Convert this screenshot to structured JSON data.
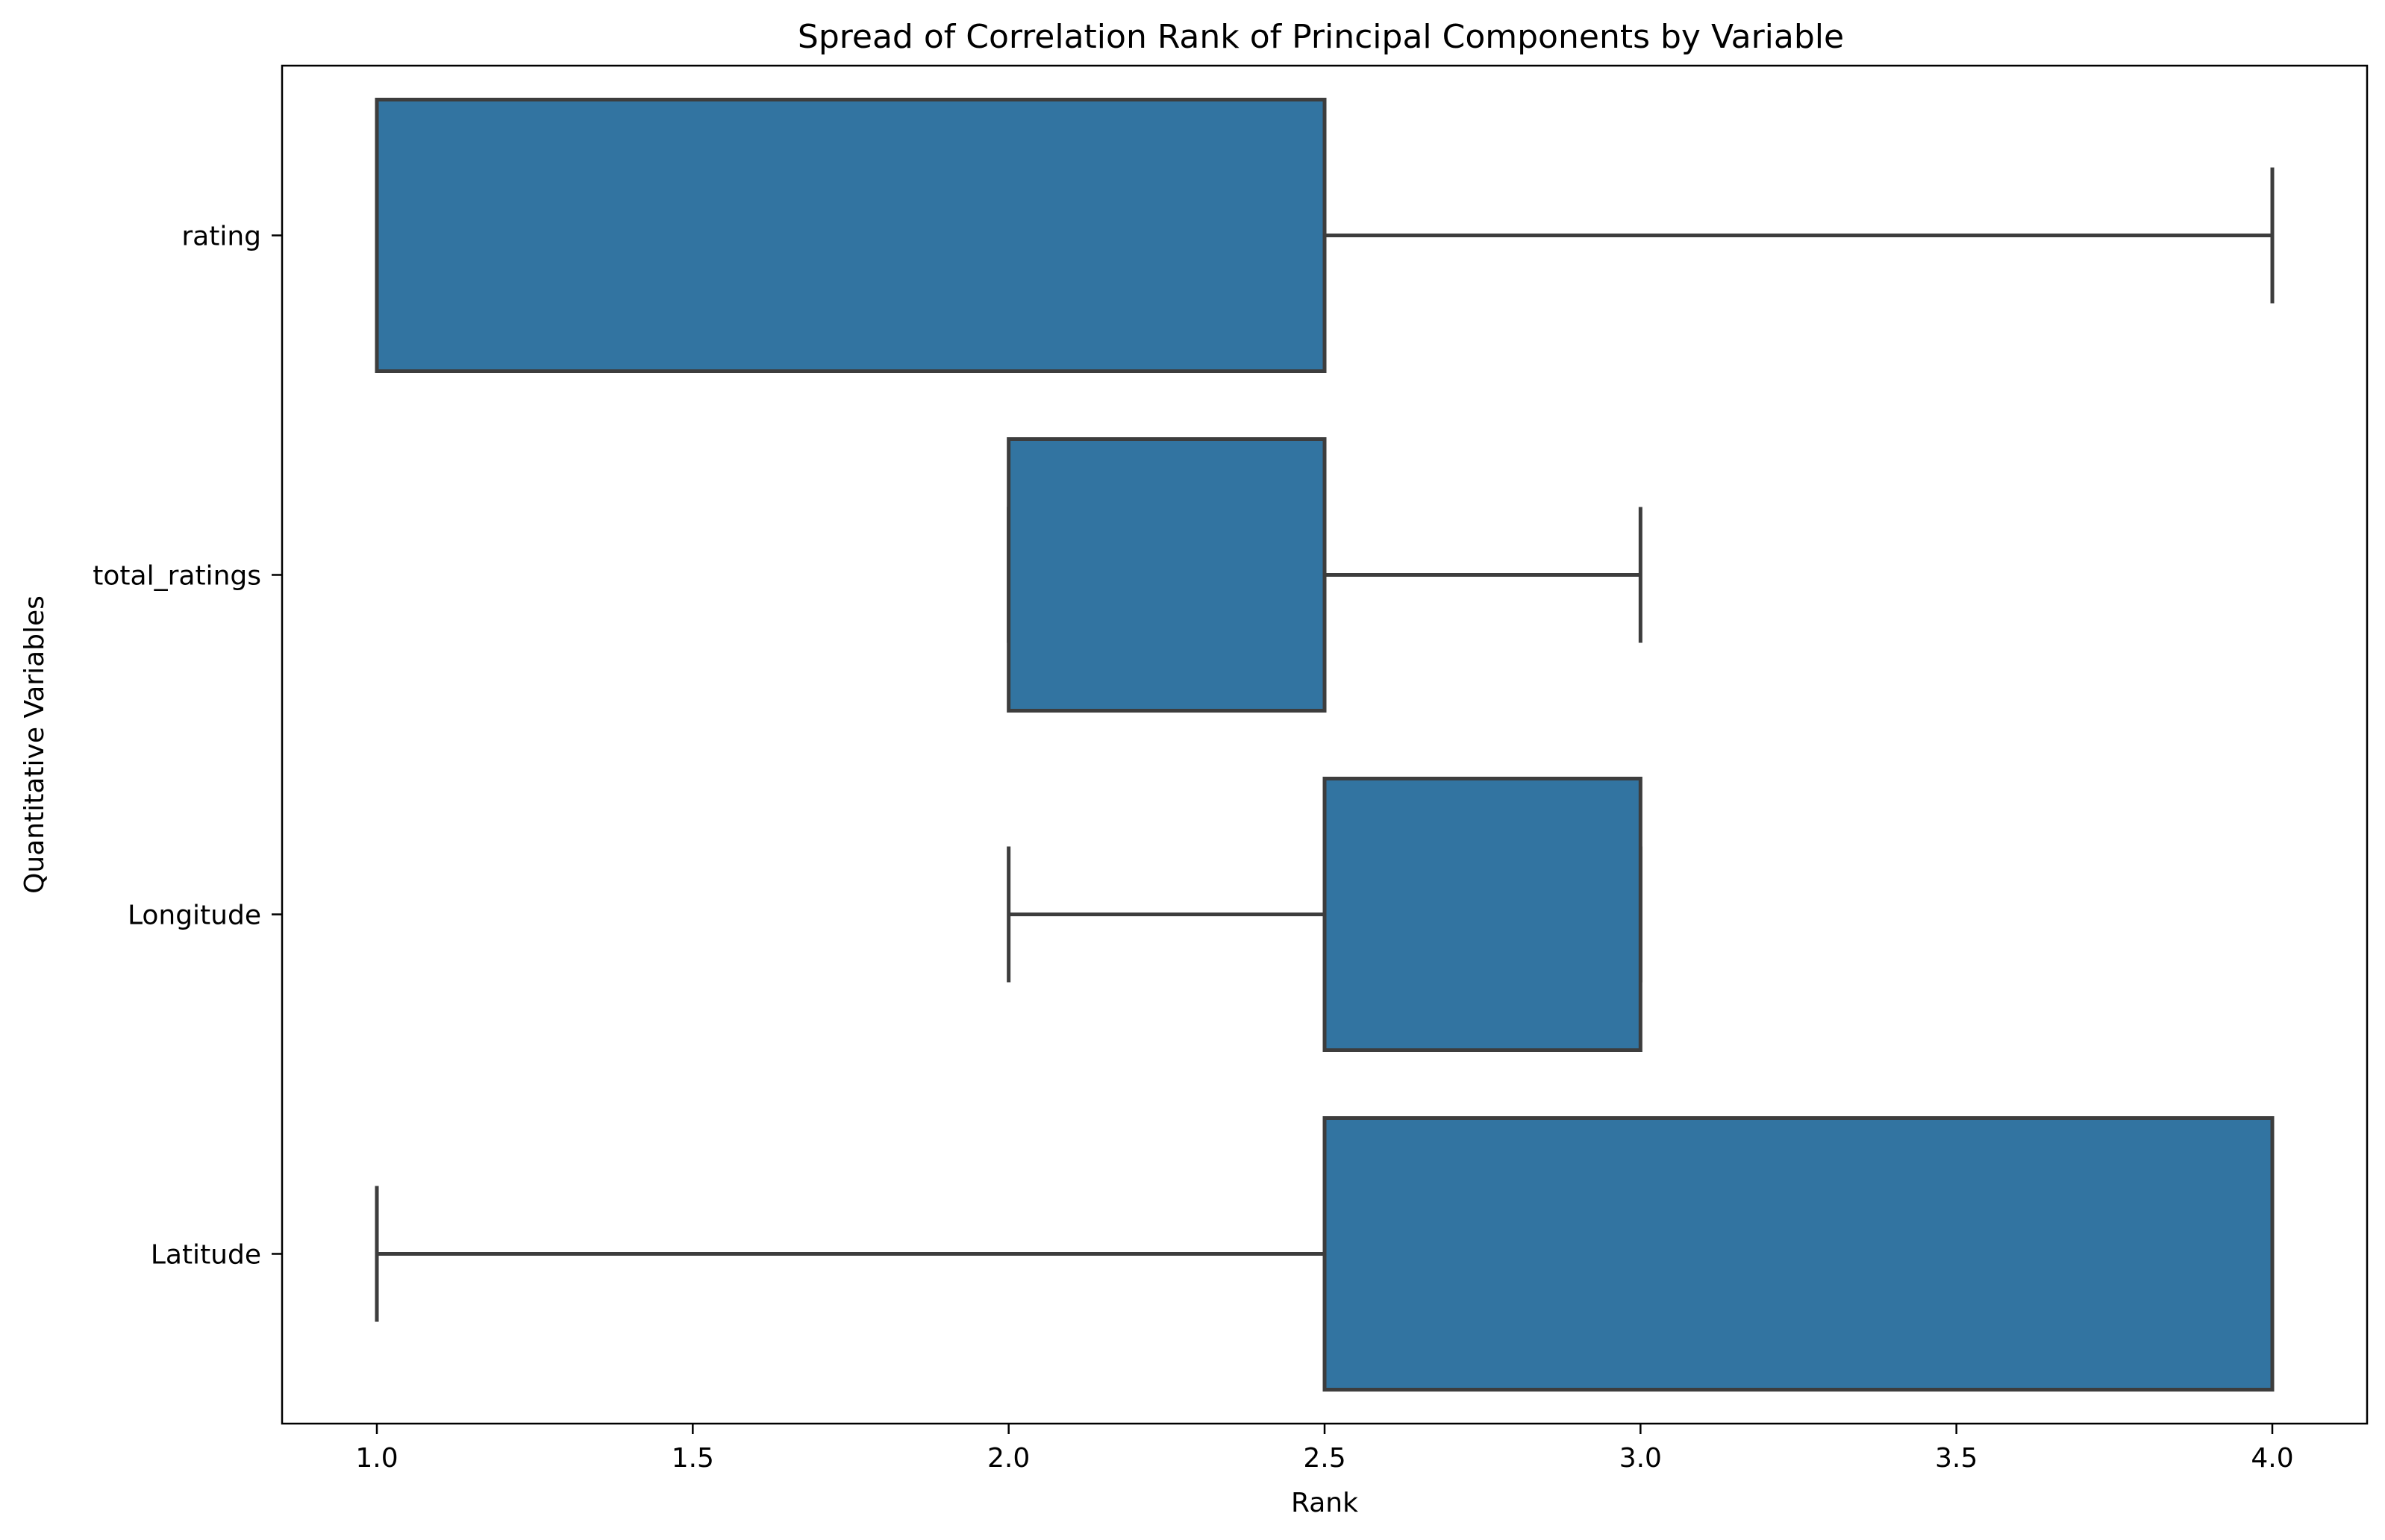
{
  "chart_data": {
    "type": "box",
    "orientation": "horizontal",
    "title": "Spread of Correlation Rank of Principal Components by Variable",
    "xlabel": "Rank",
    "ylabel": "Quantitative Variables",
    "xlim": [
      0.85,
      4.15
    ],
    "xticks": [
      1.0,
      1.5,
      2.0,
      2.5,
      3.0,
      3.5,
      4.0
    ],
    "xtick_labels": [
      "1.0",
      "1.5",
      "2.0",
      "2.5",
      "3.0",
      "3.5",
      "4.0"
    ],
    "categories": [
      "rating",
      "total_ratings",
      "Longitude",
      "Latitude"
    ],
    "boxes": [
      {
        "category": "rating",
        "whislo": 1.0,
        "q1": 1.0,
        "med": 2.5,
        "q3": 2.5,
        "whishi": 4.0
      },
      {
        "category": "total_ratings",
        "whislo": 2.0,
        "q1": 2.0,
        "med": 2.5,
        "q3": 2.5,
        "whishi": 3.0
      },
      {
        "category": "Longitude",
        "whislo": 2.0,
        "q1": 2.5,
        "med": 2.5,
        "q3": 3.0,
        "whishi": 3.0
      },
      {
        "category": "Latitude",
        "whislo": 1.0,
        "q1": 2.5,
        "med": 2.5,
        "q3": 4.0,
        "whishi": 4.0
      }
    ],
    "grid": false,
    "legend": "none",
    "colors": {
      "box_fill": "#3274a1",
      "line": "#3d3d3d",
      "axis": "#000000"
    }
  }
}
